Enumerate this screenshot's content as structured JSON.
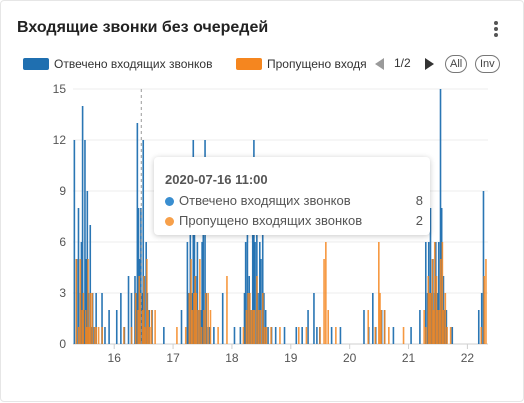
{
  "header": {
    "title": "Входящие звонки без очередей"
  },
  "legend": {
    "items": [
      {
        "label": "Отвечено входящих звонков",
        "color": "#1f6fb0"
      },
      {
        "label": "Пропущено входящих звонков",
        "color": "#f5861f"
      }
    ],
    "page": "1/2",
    "all_label": "All",
    "inv_label": "Inv"
  },
  "tooltip": {
    "date": "2020-07-16 11:00",
    "rows": [
      {
        "label": "Отвечено входящих звонков",
        "value": "8",
        "color": "#3a8ed0"
      },
      {
        "label": "Пропущено входящих звонков",
        "value": "2",
        "color": "#f7a04a"
      }
    ]
  },
  "chart_data": {
    "type": "bar",
    "x_unit": "day of July 2020 (fractional)",
    "xlim": [
      15.3,
      22.35
    ],
    "ylim": [
      0,
      15
    ],
    "y_ticks": [
      0,
      3,
      6,
      9,
      12,
      15
    ],
    "x_ticks": [
      16,
      17,
      18,
      19,
      20,
      21,
      22
    ],
    "x_tick_labels": [
      "16",
      "17",
      "18",
      "19",
      "20",
      "21",
      "22"
    ],
    "grid": true,
    "legend_position": "top",
    "crosshair_x": 16.46,
    "series": [
      {
        "name": "Отвечено входящих звонков",
        "color": "#1f6fb0",
        "points": [
          [
            15.33,
            12
          ],
          [
            15.37,
            5
          ],
          [
            15.4,
            8
          ],
          [
            15.43,
            3
          ],
          [
            15.45,
            6
          ],
          [
            15.47,
            14
          ],
          [
            15.49,
            2
          ],
          [
            15.51,
            12
          ],
          [
            15.53,
            5
          ],
          [
            15.55,
            9
          ],
          [
            15.57,
            3
          ],
          [
            15.6,
            7
          ],
          [
            15.62,
            1
          ],
          [
            15.64,
            3
          ],
          [
            15.67,
            1
          ],
          [
            15.7,
            3
          ],
          [
            15.8,
            3
          ],
          [
            15.85,
            1
          ],
          [
            15.92,
            2
          ],
          [
            16.05,
            2
          ],
          [
            16.12,
            3
          ],
          [
            16.18,
            1
          ],
          [
            16.25,
            4
          ],
          [
            16.3,
            3
          ],
          [
            16.36,
            4
          ],
          [
            16.38,
            3
          ],
          [
            16.4,
            13
          ],
          [
            16.42,
            8
          ],
          [
            16.44,
            5
          ],
          [
            16.46,
            8
          ],
          [
            16.48,
            3
          ],
          [
            16.5,
            12
          ],
          [
            16.52,
            4
          ],
          [
            16.55,
            6
          ],
          [
            16.57,
            3
          ],
          [
            16.6,
            2
          ],
          [
            16.65,
            2
          ],
          [
            16.85,
            1
          ],
          [
            17.15,
            2
          ],
          [
            17.25,
            6
          ],
          [
            17.27,
            3
          ],
          [
            17.3,
            8
          ],
          [
            17.33,
            3
          ],
          [
            17.35,
            12
          ],
          [
            17.37,
            9
          ],
          [
            17.39,
            4
          ],
          [
            17.42,
            6
          ],
          [
            17.45,
            2
          ],
          [
            17.48,
            2
          ],
          [
            17.5,
            6
          ],
          [
            17.52,
            7
          ],
          [
            17.55,
            12
          ],
          [
            17.57,
            3
          ],
          [
            17.6,
            1
          ],
          [
            17.63,
            1
          ],
          [
            17.7,
            1
          ],
          [
            17.85,
            3
          ],
          [
            18.05,
            1
          ],
          [
            18.15,
            1
          ],
          [
            18.22,
            3
          ],
          [
            18.24,
            6
          ],
          [
            18.27,
            8
          ],
          [
            18.3,
            4
          ],
          [
            18.33,
            2
          ],
          [
            18.36,
            9
          ],
          [
            18.38,
            12
          ],
          [
            18.4,
            6
          ],
          [
            18.43,
            8
          ],
          [
            18.45,
            3
          ],
          [
            18.48,
            6
          ],
          [
            18.5,
            5
          ],
          [
            18.53,
            9
          ],
          [
            18.55,
            3
          ],
          [
            18.58,
            2
          ],
          [
            18.62,
            1
          ],
          [
            18.68,
            1
          ],
          [
            18.75,
            1
          ],
          [
            18.9,
            1
          ],
          [
            19.1,
            1
          ],
          [
            19.2,
            1
          ],
          [
            19.3,
            2
          ],
          [
            19.4,
            3
          ],
          [
            19.45,
            1
          ],
          [
            19.5,
            1
          ],
          [
            19.7,
            1
          ],
          [
            19.85,
            1
          ],
          [
            20.25,
            2
          ],
          [
            20.33,
            1
          ],
          [
            20.4,
            3
          ],
          [
            20.45,
            1
          ],
          [
            20.55,
            2
          ],
          [
            20.6,
            2
          ],
          [
            20.75,
            1
          ],
          [
            21.05,
            1
          ],
          [
            21.2,
            2
          ],
          [
            21.3,
            6
          ],
          [
            21.33,
            3
          ],
          [
            21.35,
            6
          ],
          [
            21.38,
            8
          ],
          [
            21.4,
            3
          ],
          [
            21.42,
            5
          ],
          [
            21.45,
            3
          ],
          [
            21.47,
            6
          ],
          [
            21.5,
            3
          ],
          [
            21.52,
            6
          ],
          [
            21.55,
            15
          ],
          [
            21.57,
            8
          ],
          [
            21.6,
            4
          ],
          [
            21.62,
            2
          ],
          [
            21.65,
            2
          ],
          [
            21.75,
            1
          ],
          [
            22.2,
            2
          ],
          [
            22.25,
            3
          ],
          [
            22.28,
            9
          ]
        ]
      },
      {
        "name": "Пропущено входящих звонков",
        "color": "#f5861f",
        "points": [
          [
            15.34,
            5
          ],
          [
            15.38,
            1
          ],
          [
            15.41,
            5
          ],
          [
            15.44,
            2
          ],
          [
            15.46,
            3
          ],
          [
            15.5,
            2
          ],
          [
            15.52,
            1
          ],
          [
            15.54,
            5
          ],
          [
            15.56,
            1
          ],
          [
            15.58,
            3
          ],
          [
            15.61,
            3
          ],
          [
            15.65,
            1
          ],
          [
            15.68,
            1
          ],
          [
            15.72,
            1
          ],
          [
            15.78,
            1
          ],
          [
            16.15,
            1
          ],
          [
            16.28,
            1
          ],
          [
            16.35,
            3
          ],
          [
            16.39,
            2
          ],
          [
            16.41,
            4
          ],
          [
            16.43,
            3
          ],
          [
            16.47,
            2
          ],
          [
            16.49,
            4
          ],
          [
            16.51,
            1
          ],
          [
            16.54,
            5
          ],
          [
            16.56,
            2
          ],
          [
            16.59,
            1
          ],
          [
            16.62,
            2
          ],
          [
            16.68,
            2
          ],
          [
            17.05,
            1
          ],
          [
            17.2,
            1
          ],
          [
            17.26,
            3
          ],
          [
            17.29,
            5
          ],
          [
            17.31,
            2
          ],
          [
            17.34,
            3
          ],
          [
            17.36,
            4
          ],
          [
            17.38,
            3
          ],
          [
            17.41,
            2
          ],
          [
            17.44,
            5
          ],
          [
            17.47,
            1
          ],
          [
            17.51,
            2
          ],
          [
            17.54,
            3
          ],
          [
            17.58,
            3
          ],
          [
            17.62,
            2
          ],
          [
            17.75,
            1
          ],
          [
            17.9,
            4
          ],
          [
            18.18,
            1
          ],
          [
            18.23,
            2
          ],
          [
            18.26,
            3
          ],
          [
            18.29,
            3
          ],
          [
            18.32,
            2
          ],
          [
            18.35,
            2
          ],
          [
            18.37,
            2
          ],
          [
            18.41,
            4
          ],
          [
            18.44,
            2
          ],
          [
            18.47,
            2
          ],
          [
            18.51,
            3
          ],
          [
            18.54,
            1
          ],
          [
            18.57,
            1
          ],
          [
            18.65,
            1
          ],
          [
            18.8,
            1
          ],
          [
            19.12,
            1
          ],
          [
            19.25,
            1
          ],
          [
            19.48,
            1
          ],
          [
            19.55,
            5
          ],
          [
            19.58,
            6
          ],
          [
            19.62,
            2
          ],
          [
            19.75,
            1
          ],
          [
            20.3,
            2
          ],
          [
            20.42,
            1
          ],
          [
            20.48,
            6
          ],
          [
            20.5,
            3
          ],
          [
            20.52,
            2
          ],
          [
            20.58,
            2
          ],
          [
            20.65,
            1
          ],
          [
            20.9,
            1
          ],
          [
            21.25,
            2
          ],
          [
            21.28,
            1
          ],
          [
            21.32,
            4
          ],
          [
            21.34,
            3
          ],
          [
            21.36,
            3
          ],
          [
            21.39,
            5
          ],
          [
            21.41,
            2
          ],
          [
            21.43,
            6
          ],
          [
            21.46,
            4
          ],
          [
            21.48,
            2
          ],
          [
            21.51,
            2
          ],
          [
            21.53,
            5
          ],
          [
            21.56,
            6
          ],
          [
            21.58,
            2
          ],
          [
            21.61,
            3
          ],
          [
            21.64,
            1
          ],
          [
            21.7,
            1
          ],
          [
            22.22,
            1
          ],
          [
            22.27,
            4
          ],
          [
            22.3,
            5
          ]
        ]
      }
    ]
  }
}
